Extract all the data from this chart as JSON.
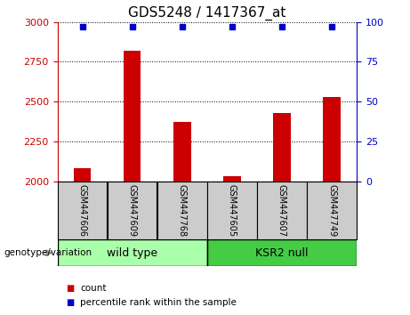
{
  "title": "GDS5248 / 1417367_at",
  "categories": [
    "GSM447606",
    "GSM447609",
    "GSM447768",
    "GSM447605",
    "GSM447607",
    "GSM447749"
  ],
  "counts": [
    2080,
    2820,
    2370,
    2030,
    2430,
    2530
  ],
  "percentile_ranks": [
    97,
    97,
    97,
    97,
    97,
    97
  ],
  "ylim_left": [
    2000,
    3000
  ],
  "ylim_right": [
    0,
    100
  ],
  "yticks_left": [
    2000,
    2250,
    2500,
    2750,
    3000
  ],
  "yticks_right": [
    0,
    25,
    50,
    75,
    100
  ],
  "bar_color": "#cc0000",
  "percentile_color": "#0000cc",
  "bg_color": "#ffffff",
  "grid_color": "#000000",
  "group1_label": "wild type",
  "group2_label": "KSR2 null",
  "group1_color": "#aaffaa",
  "group2_color": "#44cc44",
  "group1_indices": [
    0,
    1,
    2
  ],
  "group2_indices": [
    3,
    4,
    5
  ],
  "legend_count_label": "count",
  "legend_percentile_label": "percentile rank within the sample",
  "genotype_label": "genotype/variation",
  "left_tick_color": "#cc0000",
  "right_tick_color": "#0000cc",
  "bar_width": 0.35,
  "title_fontsize": 11,
  "tick_fontsize": 8,
  "label_fontsize": 8,
  "sample_label_fontsize": 7,
  "group_label_fontsize": 9
}
